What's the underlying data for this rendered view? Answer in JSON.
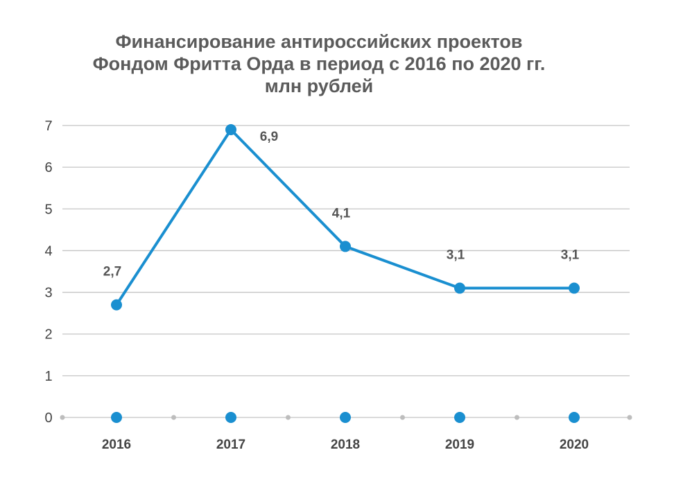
{
  "chart_data": {
    "type": "line",
    "title": [
      "Финансирование антироссийских проектов",
      "Фондом Фритта Орда в период с 2016 по 2020 гг.",
      "млн рублей"
    ],
    "categories": [
      "2016",
      "2017",
      "2018",
      "2019",
      "2020"
    ],
    "series": [
      {
        "values": [
          2.7,
          6.9,
          4.1,
          3.1,
          3.1
        ],
        "labels": [
          "2,7",
          "6,9",
          "4,1",
          "3,1",
          "3,1"
        ],
        "color": "#1a8fd0"
      }
    ],
    "baseline_markers": [
      0,
      0,
      0,
      0,
      0
    ],
    "ylim": [
      0,
      7
    ],
    "yticks": [
      "0",
      "1",
      "2",
      "3",
      "4",
      "5",
      "6",
      "7"
    ],
    "grid": true,
    "gridColor": "#c4c4c4",
    "axisDotColor": "#bdbdbd",
    "legend": "none"
  }
}
